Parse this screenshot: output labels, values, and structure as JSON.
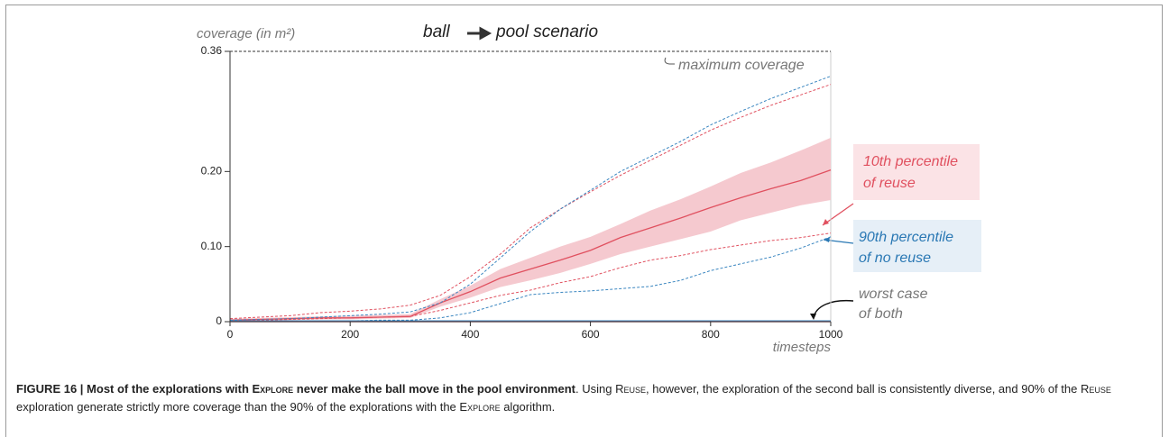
{
  "chart_data": {
    "type": "line",
    "title": [
      "ball",
      "pool scenario"
    ],
    "y_label": "coverage (in m²)",
    "x_label": "timesteps",
    "x": [
      0,
      50,
      100,
      150,
      200,
      250,
      300,
      350,
      400,
      450,
      500,
      550,
      600,
      650,
      700,
      750,
      800,
      850,
      900,
      950,
      1000
    ],
    "xlim": [
      0,
      1000
    ],
    "xticks": [
      0,
      200,
      400,
      600,
      800,
      1000
    ],
    "ylim": [
      0,
      0.36
    ],
    "yticks": [
      0,
      {
        "value": 0.1,
        "label": "0.10"
      },
      {
        "value": 0.2,
        "label": "0.20"
      },
      0.36
    ],
    "band": {
      "color": "#f5c9cf",
      "lower": [
        0,
        0.001,
        0.002,
        0.003,
        0.003,
        0.004,
        0.005,
        0.02,
        0.032,
        0.046,
        0.055,
        0.065,
        0.077,
        0.09,
        0.1,
        0.11,
        0.12,
        0.135,
        0.145,
        0.155,
        0.162
      ],
      "upper": [
        0.004,
        0.005,
        0.006,
        0.007,
        0.008,
        0.009,
        0.01,
        0.03,
        0.048,
        0.07,
        0.085,
        0.1,
        0.113,
        0.13,
        0.148,
        0.163,
        0.18,
        0.198,
        0.212,
        0.228,
        0.245
      ]
    },
    "series": [
      {
        "color": "#e0505f",
        "dash": false,
        "values": [
          0.002,
          0.003,
          0.004,
          0.005,
          0.005,
          0.006,
          0.007,
          0.025,
          0.04,
          0.058,
          0.07,
          0.082,
          0.095,
          0.112,
          0.125,
          0.138,
          0.152,
          0.165,
          0.177,
          0.188,
          0.202
        ]
      },
      {
        "color": "#e0505f",
        "dash": true,
        "values": [
          0.004,
          0.006,
          0.008,
          0.012,
          0.014,
          0.017,
          0.022,
          0.035,
          0.06,
          0.09,
          0.125,
          0.15,
          0.173,
          0.195,
          0.215,
          0.235,
          0.255,
          0.272,
          0.288,
          0.302,
          0.316
        ]
      },
      {
        "color": "#3a86c0",
        "dash": true,
        "values": [
          0.002,
          0.003,
          0.004,
          0.006,
          0.008,
          0.01,
          0.013,
          0.025,
          0.05,
          0.085,
          0.12,
          0.15,
          0.175,
          0.2,
          0.22,
          0.24,
          0.262,
          0.28,
          0.297,
          0.312,
          0.327
        ]
      },
      {
        "color": "#e0505f",
        "dash": true,
        "values": [
          0.001,
          0.002,
          0.003,
          0.004,
          0.005,
          0.006,
          0.007,
          0.015,
          0.025,
          0.035,
          0.042,
          0.052,
          0.06,
          0.072,
          0.082,
          0.088,
          0.096,
          0.102,
          0.108,
          0.112,
          0.118
        ]
      },
      {
        "color": "#3a86c0",
        "dash": true,
        "values": [
          0,
          0,
          0,
          0.001,
          0.001,
          0.002,
          0.002,
          0.005,
          0.012,
          0.024,
          0.036,
          0.039,
          0.041,
          0.044,
          0.047,
          0.055,
          0.068,
          0.077,
          0.086,
          0.098,
          0.113
        ]
      },
      {
        "color": "#3a86c0",
        "dash": false,
        "values": [
          0.001,
          0.001,
          0.001,
          0.001,
          0.001,
          0.001,
          0.001,
          0.001,
          0.001,
          0.001,
          0.001,
          0.001,
          0.001,
          0.001,
          0.001,
          0.001,
          0.001,
          0.001,
          0.001,
          0.001,
          0.001
        ]
      },
      {
        "color": "#e0505f",
        "dash": false,
        "values": [
          0,
          0,
          0,
          0,
          0,
          0,
          0,
          0,
          0,
          0,
          0,
          0,
          0,
          0,
          0,
          0,
          0,
          0,
          0,
          0,
          0
        ]
      }
    ],
    "annotations": {
      "max": "maximum coverage",
      "reuse": [
        "10th percentile",
        "of reuse"
      ],
      "noreuse": [
        "90th percentile",
        "of no reuse"
      ],
      "worst": [
        "worst case",
        "of both"
      ]
    }
  },
  "caption": {
    "segments": [
      {
        "text": "FIGURE 16 | Most of the explorations with ",
        "style": "bold"
      },
      {
        "text": "Explore",
        "style": "bold-smallcaps"
      },
      {
        "text": " never make the ball move in the pool environment",
        "style": "bold"
      },
      {
        "text": ". Using ",
        "style": "normal"
      },
      {
        "text": "Reuse",
        "style": "smallcaps"
      },
      {
        "text": ", however, the exploration of the second ball is consistently diverse, and 90% of the ",
        "style": "normal"
      },
      {
        "text": "Reuse",
        "style": "smallcaps"
      },
      {
        "text": " exploration generate strictly more coverage than the 90% of the explorations with the ",
        "style": "normal"
      },
      {
        "text": "Explore",
        "style": "smallcaps"
      },
      {
        "text": " algorithm.",
        "style": "normal"
      }
    ]
  }
}
